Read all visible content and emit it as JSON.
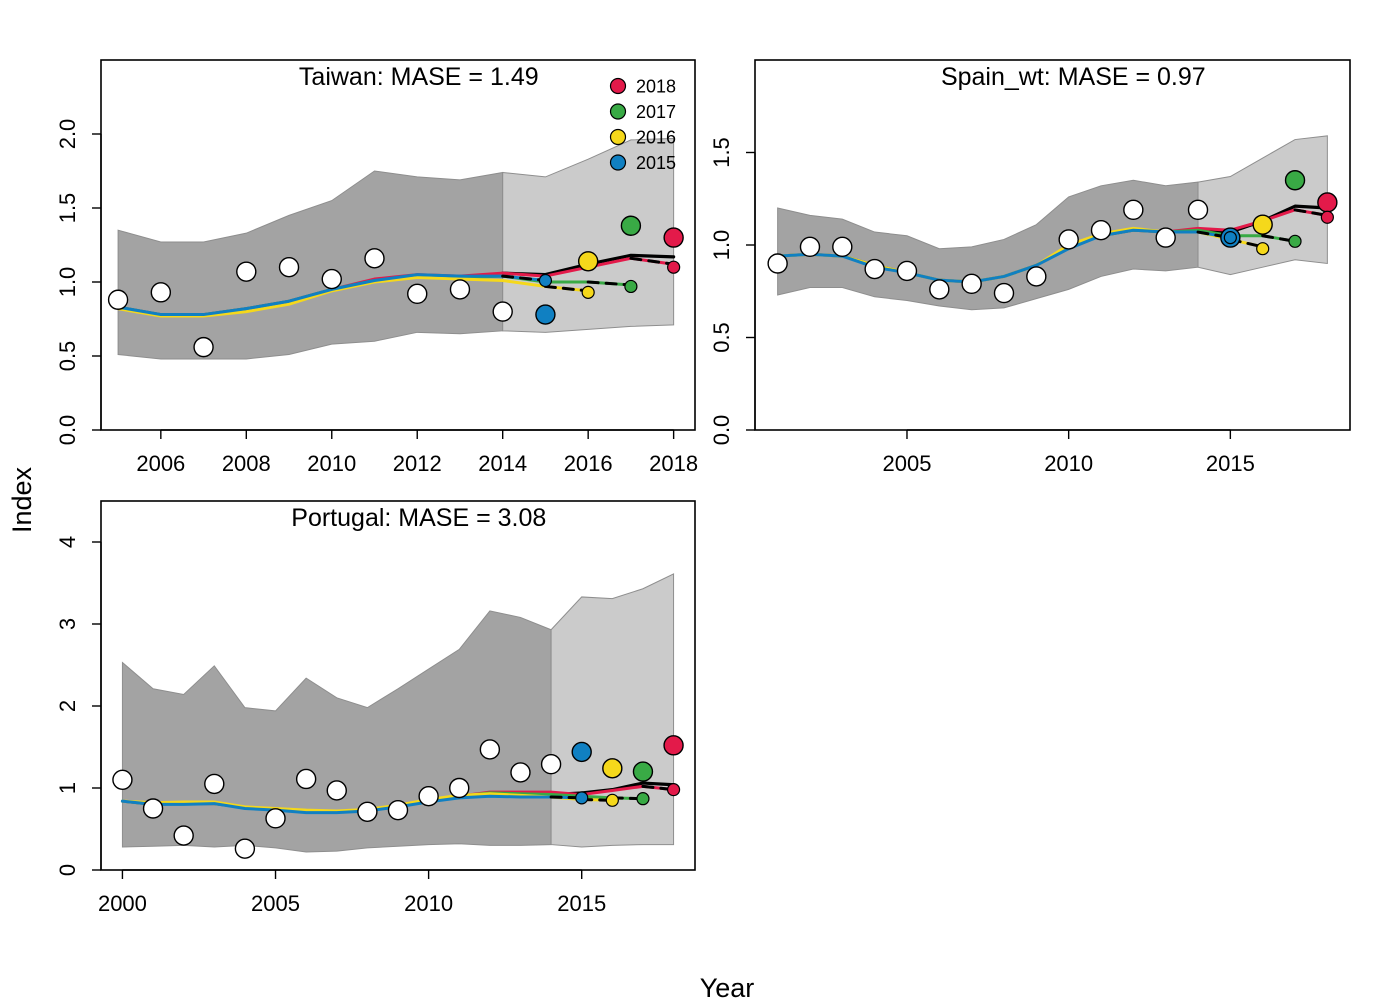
{
  "figure": {
    "xlabel": "Year",
    "ylabel": "Index"
  },
  "legend": {
    "placement": "top-right of first panel",
    "items": [
      {
        "label": "2018",
        "color": "#E31A4A"
      },
      {
        "label": "2017",
        "color": "#39AA45"
      },
      {
        "label": "2016",
        "color": "#F5D81B"
      },
      {
        "label": "2015",
        "color": "#1080C2"
      }
    ]
  },
  "chart_data": [
    {
      "type": "line",
      "title": "Taiwan: MASE = 1.49",
      "xlim": [
        2004.6,
        2018.5
      ],
      "ylim": [
        0,
        2.5
      ],
      "xticks": [
        2006,
        2008,
        2010,
        2012,
        2014,
        2016,
        2018
      ],
      "yticks": [
        0.0,
        0.5,
        1.0,
        1.5,
        2.0
      ],
      "ytick_labels": [
        "0.0",
        "0.5",
        "1.0",
        "1.5",
        "2.0"
      ],
      "fit_end": 2014,
      "observed": {
        "x": [
          2005,
          2006,
          2007,
          2008,
          2009,
          2010,
          2011,
          2012,
          2013,
          2014,
          2015,
          2016,
          2017,
          2018
        ],
        "y": [
          0.88,
          0.93,
          0.56,
          1.07,
          1.1,
          1.02,
          1.16,
          0.92,
          0.95,
          0.8,
          0.78,
          1.14,
          1.38,
          1.3
        ]
      },
      "confidence_band": {
        "x": [
          2005,
          2006,
          2007,
          2008,
          2009,
          2010,
          2011,
          2012,
          2013,
          2014,
          2015,
          2016,
          2017,
          2018
        ],
        "lower": [
          0.51,
          0.48,
          0.48,
          0.48,
          0.51,
          0.58,
          0.6,
          0.66,
          0.65,
          0.67,
          0.66,
          0.68,
          0.7,
          0.71
        ],
        "upper": [
          1.35,
          1.27,
          1.27,
          1.33,
          1.45,
          1.55,
          1.75,
          1.71,
          1.69,
          1.74,
          1.71,
          1.83,
          1.96,
          1.97
        ]
      },
      "reference_fit": {
        "x": [
          2005,
          2006,
          2007,
          2008,
          2009,
          2010,
          2011,
          2012,
          2013,
          2014,
          2015,
          2016,
          2017,
          2018
        ],
        "y": [
          0.83,
          0.78,
          0.78,
          0.82,
          0.87,
          0.95,
          1.02,
          1.05,
          1.04,
          1.06,
          1.05,
          1.12,
          1.18,
          1.17
        ]
      },
      "peels": [
        {
          "name": "2018",
          "color": "#E31A4A",
          "end": 2018,
          "x": [
            2005,
            2006,
            2007,
            2008,
            2009,
            2010,
            2011,
            2012,
            2013,
            2014,
            2015,
            2016,
            2017,
            2018
          ],
          "y": [
            0.83,
            0.78,
            0.78,
            0.82,
            0.87,
            0.95,
            1.02,
            1.05,
            1.04,
            1.06,
            1.04,
            1.1,
            1.16,
            1.12
          ],
          "pred_y": 1.1
        },
        {
          "name": "2017",
          "color": "#39AA45",
          "end": 2017,
          "x": [
            2005,
            2006,
            2007,
            2008,
            2009,
            2010,
            2011,
            2012,
            2013,
            2014,
            2015,
            2016,
            2017
          ],
          "y": [
            0.83,
            0.78,
            0.78,
            0.82,
            0.87,
            0.95,
            1.01,
            1.04,
            1.03,
            1.04,
            1.0,
            1.0,
            0.98
          ],
          "pred_y": 0.97
        },
        {
          "name": "2016",
          "color": "#F5D81B",
          "end": 2016,
          "x": [
            2005,
            2006,
            2007,
            2008,
            2009,
            2010,
            2011,
            2012,
            2013,
            2014,
            2015,
            2016
          ],
          "y": [
            0.82,
            0.77,
            0.77,
            0.8,
            0.85,
            0.94,
            1.0,
            1.03,
            1.02,
            1.01,
            0.97,
            0.94
          ],
          "pred_y": 0.93
        },
        {
          "name": "2015",
          "color": "#1080C2",
          "end": 2015,
          "x": [
            2005,
            2006,
            2007,
            2008,
            2009,
            2010,
            2011,
            2012,
            2013,
            2014,
            2015
          ],
          "y": [
            0.83,
            0.78,
            0.78,
            0.82,
            0.87,
            0.95,
            1.01,
            1.05,
            1.04,
            1.04,
            1.01
          ],
          "pred_y": 1.01
        }
      ]
    },
    {
      "type": "line",
      "title": "Spain_wt: MASE = 0.97",
      "xlim": [
        2000.3,
        2018.7
      ],
      "ylim": [
        0,
        2.0
      ],
      "xticks": [
        2005,
        2010,
        2015
      ],
      "yticks": [
        0.0,
        0.5,
        1.0,
        1.5
      ],
      "ytick_labels": [
        "0.0",
        "0.5",
        "1.0",
        "1.5"
      ],
      "fit_end": 2014,
      "observed": {
        "x": [
          2001,
          2002,
          2003,
          2004,
          2005,
          2006,
          2007,
          2008,
          2009,
          2010,
          2011,
          2012,
          2013,
          2014,
          2015,
          2016,
          2017,
          2018
        ],
        "y": [
          0.9,
          0.99,
          0.99,
          0.87,
          0.86,
          0.76,
          0.79,
          0.74,
          0.83,
          1.03,
          1.08,
          1.19,
          1.04,
          1.19,
          1.04,
          1.11,
          1.35,
          1.23
        ]
      },
      "confidence_band": {
        "x": [
          2001,
          2002,
          2003,
          2004,
          2005,
          2006,
          2007,
          2008,
          2009,
          2010,
          2011,
          2012,
          2013,
          2014,
          2015,
          2016,
          2017,
          2018
        ],
        "lower": [
          0.73,
          0.77,
          0.77,
          0.72,
          0.7,
          0.67,
          0.65,
          0.66,
          0.71,
          0.76,
          0.83,
          0.87,
          0.86,
          0.88,
          0.84,
          0.88,
          0.92,
          0.9
        ],
        "upper": [
          1.2,
          1.16,
          1.14,
          1.07,
          1.05,
          0.98,
          0.99,
          1.03,
          1.11,
          1.26,
          1.32,
          1.35,
          1.32,
          1.34,
          1.37,
          1.47,
          1.57,
          1.59
        ]
      },
      "reference_fit": {
        "x": [
          2001,
          2002,
          2003,
          2004,
          2005,
          2006,
          2007,
          2008,
          2009,
          2010,
          2011,
          2012,
          2013,
          2014,
          2015,
          2016,
          2017,
          2018
        ],
        "y": [
          0.94,
          0.95,
          0.94,
          0.89,
          0.85,
          0.81,
          0.8,
          0.83,
          0.89,
          0.98,
          1.05,
          1.08,
          1.07,
          1.08,
          1.07,
          1.13,
          1.21,
          1.2
        ]
      },
      "peels": [
        {
          "name": "2018",
          "color": "#E31A4A",
          "end": 2018,
          "x": [
            2001,
            2002,
            2003,
            2004,
            2005,
            2006,
            2007,
            2008,
            2009,
            2010,
            2011,
            2012,
            2013,
            2014,
            2015,
            2016,
            2017,
            2018
          ],
          "y": [
            0.94,
            0.95,
            0.94,
            0.89,
            0.85,
            0.81,
            0.8,
            0.83,
            0.89,
            0.99,
            1.05,
            1.08,
            1.07,
            1.09,
            1.08,
            1.13,
            1.19,
            1.16
          ],
          "pred_y": 1.15
        },
        {
          "name": "2017",
          "color": "#39AA45",
          "end": 2017,
          "x": [
            2001,
            2002,
            2003,
            2004,
            2005,
            2006,
            2007,
            2008,
            2009,
            2010,
            2011,
            2012,
            2013,
            2014,
            2015,
            2016,
            2017
          ],
          "y": [
            0.94,
            0.95,
            0.94,
            0.89,
            0.85,
            0.81,
            0.8,
            0.83,
            0.89,
            0.99,
            1.05,
            1.08,
            1.07,
            1.08,
            1.05,
            1.05,
            1.02
          ],
          "pred_y": 1.02
        },
        {
          "name": "2016",
          "color": "#F5D81B",
          "end": 2016,
          "x": [
            2001,
            2002,
            2003,
            2004,
            2005,
            2006,
            2007,
            2008,
            2009,
            2010,
            2011,
            2012,
            2013,
            2014,
            2015,
            2016
          ],
          "y": [
            0.94,
            0.95,
            0.94,
            0.89,
            0.85,
            0.81,
            0.8,
            0.83,
            0.89,
            1.0,
            1.06,
            1.09,
            1.07,
            1.07,
            1.03,
            0.99
          ],
          "pred_y": 0.98
        },
        {
          "name": "2015",
          "color": "#1080C2",
          "end": 2015,
          "x": [
            2001,
            2002,
            2003,
            2004,
            2005,
            2006,
            2007,
            2008,
            2009,
            2010,
            2011,
            2012,
            2013,
            2014,
            2015
          ],
          "y": [
            0.94,
            0.95,
            0.94,
            0.88,
            0.85,
            0.81,
            0.8,
            0.83,
            0.89,
            0.98,
            1.05,
            1.08,
            1.07,
            1.07,
            1.04
          ],
          "pred_y": 1.04
        }
      ]
    },
    {
      "type": "line",
      "title": "Portugal: MASE = 3.08",
      "xlim": [
        1999.3,
        2018.7
      ],
      "ylim": [
        0,
        4.5
      ],
      "xticks": [
        2000,
        2005,
        2010,
        2015
      ],
      "yticks": [
        0,
        1,
        2,
        3,
        4
      ],
      "ytick_labels": [
        "0",
        "1",
        "2",
        "3",
        "4"
      ],
      "fit_end": 2014,
      "observed": {
        "x": [
          2000,
          2001,
          2002,
          2003,
          2004,
          2005,
          2006,
          2007,
          2008,
          2009,
          2010,
          2011,
          2012,
          2013,
          2014,
          2015,
          2016,
          2017,
          2018
        ],
        "y": [
          1.1,
          0.75,
          0.42,
          1.05,
          0.26,
          0.63,
          1.11,
          0.97,
          0.71,
          0.73,
          0.9,
          1.0,
          1.47,
          1.19,
          1.29,
          1.44,
          1.24,
          1.2,
          1.52
        ]
      },
      "confidence_band": {
        "x": [
          2000,
          2001,
          2002,
          2003,
          2004,
          2005,
          2006,
          2007,
          2008,
          2009,
          2010,
          2011,
          2012,
          2013,
          2014,
          2015,
          2016,
          2017,
          2018
        ],
        "lower": [
          0.28,
          0.29,
          0.3,
          0.28,
          0.3,
          0.27,
          0.22,
          0.23,
          0.27,
          0.29,
          0.31,
          0.32,
          0.3,
          0.3,
          0.31,
          0.28,
          0.3,
          0.31,
          0.31
        ],
        "upper": [
          2.53,
          2.21,
          2.14,
          2.49,
          1.98,
          1.94,
          2.34,
          2.1,
          1.98,
          2.21,
          2.45,
          2.69,
          3.16,
          3.08,
          2.93,
          3.33,
          3.31,
          3.43,
          3.61
        ]
      },
      "reference_fit": {
        "x": [
          2000,
          2001,
          2002,
          2003,
          2004,
          2005,
          2006,
          2007,
          2008,
          2009,
          2010,
          2011,
          2012,
          2013,
          2014,
          2015,
          2016,
          2017,
          2018
        ],
        "y": [
          0.84,
          0.8,
          0.81,
          0.81,
          0.76,
          0.74,
          0.72,
          0.71,
          0.73,
          0.78,
          0.84,
          0.89,
          0.93,
          0.93,
          0.92,
          0.94,
          0.98,
          1.06,
          1.04
        ]
      },
      "peels": [
        {
          "name": "2018",
          "color": "#E31A4A",
          "end": 2018,
          "x": [
            2000,
            2001,
            2002,
            2003,
            2004,
            2005,
            2006,
            2007,
            2008,
            2009,
            2010,
            2011,
            2012,
            2013,
            2014,
            2015,
            2016,
            2017,
            2018
          ],
          "y": [
            0.84,
            0.8,
            0.81,
            0.81,
            0.76,
            0.74,
            0.72,
            0.71,
            0.73,
            0.78,
            0.85,
            0.9,
            0.95,
            0.95,
            0.95,
            0.92,
            0.97,
            1.02,
            0.98
          ],
          "pred_y": 0.98
        },
        {
          "name": "2017",
          "color": "#39AA45",
          "end": 2017,
          "x": [
            2000,
            2001,
            2002,
            2003,
            2004,
            2005,
            2006,
            2007,
            2008,
            2009,
            2010,
            2011,
            2012,
            2013,
            2014,
            2015,
            2016,
            2017
          ],
          "y": [
            0.84,
            0.8,
            0.81,
            0.81,
            0.76,
            0.74,
            0.72,
            0.71,
            0.73,
            0.78,
            0.85,
            0.9,
            0.94,
            0.93,
            0.92,
            0.9,
            0.88,
            0.87
          ],
          "pred_y": 0.87
        },
        {
          "name": "2016",
          "color": "#F5D81B",
          "end": 2016,
          "x": [
            2000,
            2001,
            2002,
            2003,
            2004,
            2005,
            2006,
            2007,
            2008,
            2009,
            2010,
            2011,
            2012,
            2013,
            2014,
            2015,
            2016
          ],
          "y": [
            0.84,
            0.82,
            0.83,
            0.83,
            0.77,
            0.75,
            0.73,
            0.72,
            0.74,
            0.79,
            0.86,
            0.91,
            0.93,
            0.91,
            0.89,
            0.86,
            0.85
          ],
          "pred_y": 0.85
        },
        {
          "name": "2015",
          "color": "#1080C2",
          "end": 2015,
          "x": [
            2000,
            2001,
            2002,
            2003,
            2004,
            2005,
            2006,
            2007,
            2008,
            2009,
            2010,
            2011,
            2012,
            2013,
            2014,
            2015
          ],
          "y": [
            0.84,
            0.8,
            0.8,
            0.81,
            0.75,
            0.73,
            0.7,
            0.7,
            0.72,
            0.77,
            0.83,
            0.88,
            0.9,
            0.89,
            0.89,
            0.88
          ],
          "pred_y": 0.88
        }
      ]
    }
  ]
}
